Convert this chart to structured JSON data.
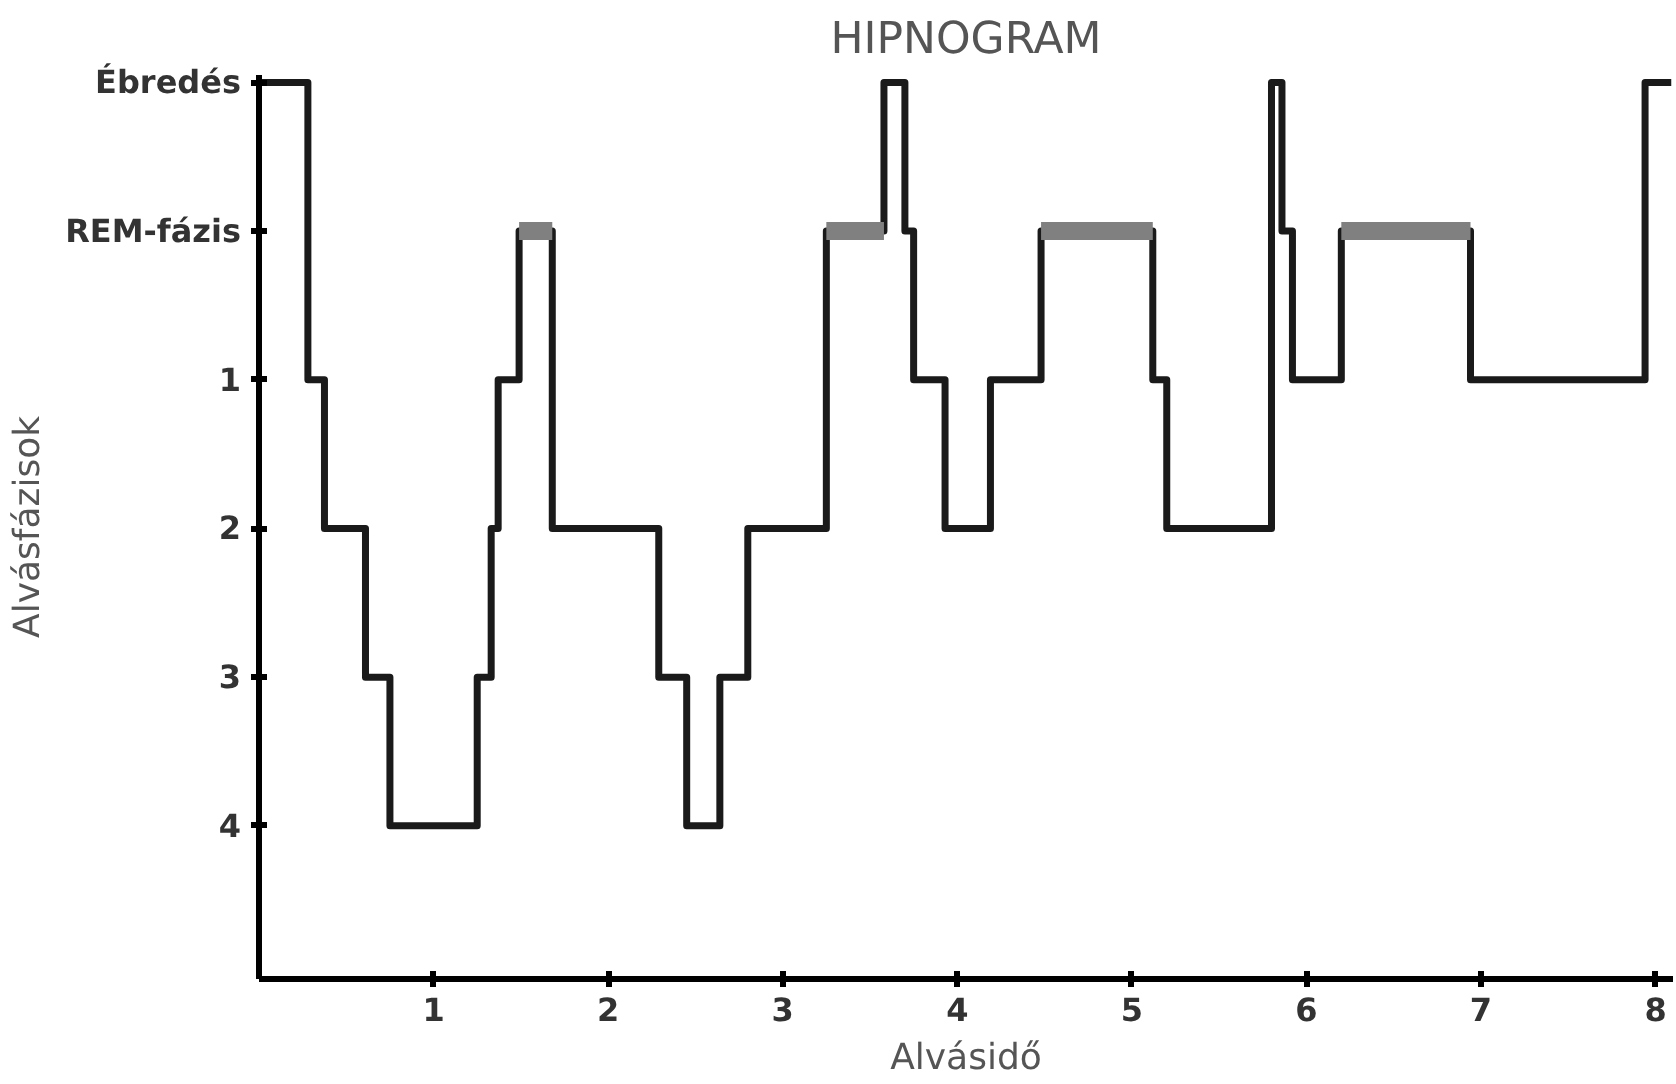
{
  "chart_data": {
    "type": "step",
    "title": "HIPNOGRAM",
    "xlabel": "Alvásidő",
    "ylabel": "Alvásfázisok",
    "xlim": [
      0,
      8.1
    ],
    "xticks": [
      1,
      2,
      3,
      4,
      5,
      6,
      7,
      8
    ],
    "ylim": [
      5.03,
      -1.05
    ],
    "yticks": [
      {
        "value": -1,
        "label": "Ébredés"
      },
      {
        "value": 0,
        "label": "REM-fázis"
      },
      1,
      2,
      3,
      4
    ],
    "grid": false,
    "series": [
      {
        "color": "#1a1a1a",
        "x": [
          0,
          0.28,
          0.375,
          0.61,
          0.75,
          1.25,
          1.33,
          1.37,
          1.49,
          1.68,
          2.29,
          2.45,
          2.64,
          2.8,
          3.25,
          3.58,
          3.7,
          3.75,
          3.93,
          4.19,
          4.48,
          5.12,
          5.2,
          5.8,
          5.86,
          5.92,
          6.2,
          6.94,
          7.94,
          8.09
        ],
        "values": [
          -1,
          1,
          2,
          3,
          4,
          3,
          2,
          1,
          0,
          2,
          3,
          4,
          3,
          2,
          0,
          -1,
          0,
          1,
          2,
          1,
          0,
          1,
          2,
          -1,
          0,
          1,
          0,
          1,
          -1,
          -1
        ]
      },
      {
        "type": "line",
        "color": "#808080",
        "x": [
          1.49,
          1.68,
          null,
          3.25,
          3.58,
          null,
          4.48,
          5.12,
          null,
          6.2,
          6.94
        ],
        "values": [
          0,
          0,
          null,
          0,
          0,
          null,
          0,
          0,
          null,
          0,
          0
        ]
      }
    ]
  }
}
